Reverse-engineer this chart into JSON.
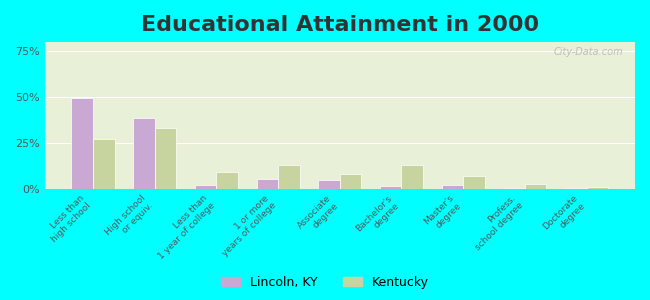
{
  "title": "Educational Attainment in 2000",
  "categories": [
    "Less than\nhigh school",
    "High school\nor equiv.",
    "Less than\n1 year of college",
    "1 or more\nyears of college",
    "Associate\ndegree",
    "Bachelor's\ndegree",
    "Master's\ndegree",
    "Profess.\nschool degree",
    "Doctorate\ndegree"
  ],
  "lincoln_ky": [
    49.5,
    38.5,
    2.0,
    5.5,
    4.5,
    1.5,
    2.0,
    0.5,
    0.3
  ],
  "kentucky": [
    27.0,
    33.0,
    9.0,
    13.0,
    8.0,
    13.0,
    7.0,
    2.5,
    1.0
  ],
  "lincoln_color": "#c9a8d4",
  "kentucky_color": "#c8d4a0",
  "background_outer": "#00ffff",
  "background_inner": "#e8f0d8",
  "yticks": [
    0,
    25,
    50,
    75
  ],
  "ytick_labels": [
    "0%",
    "25%",
    "50%",
    "75%"
  ],
  "ylim": [
    0,
    80
  ],
  "bar_width": 0.35,
  "title_fontsize": 16,
  "legend_labels": [
    "Lincoln, KY",
    "Kentucky"
  ],
  "watermark": "City-Data.com"
}
